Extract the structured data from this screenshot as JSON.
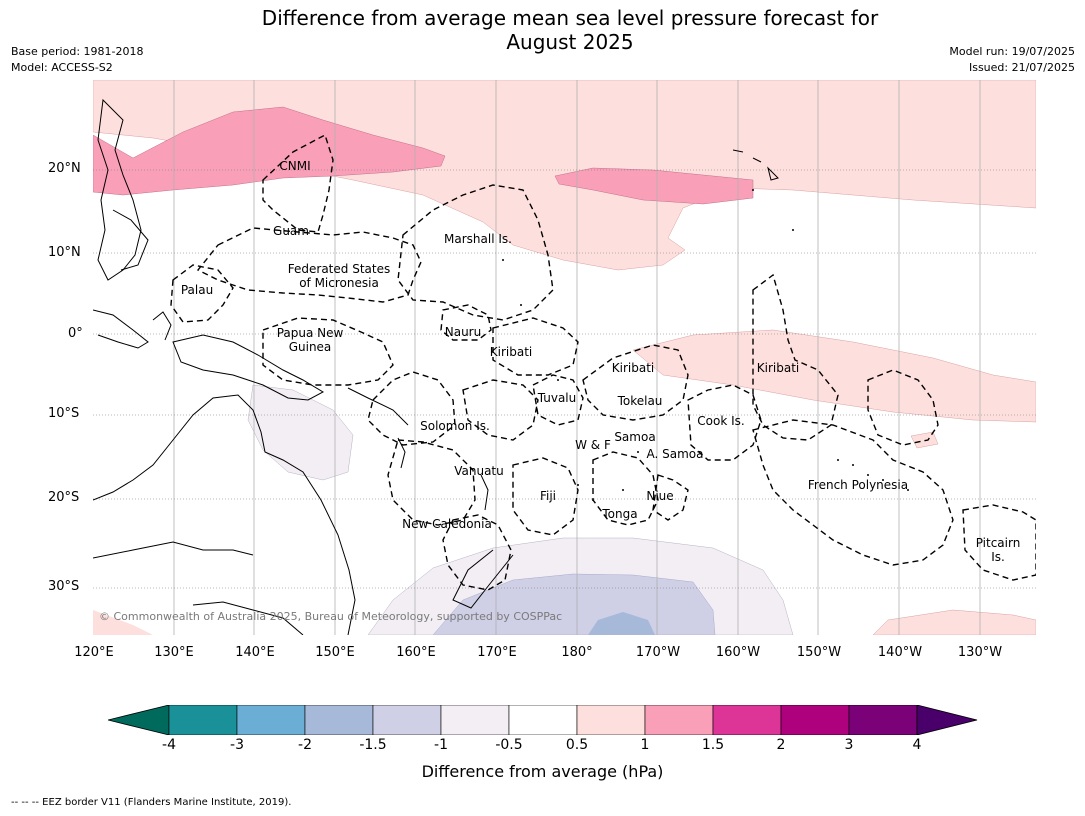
{
  "title_line1": "Difference from average mean sea level pressure forecast for",
  "title_line2": "August 2025",
  "meta": {
    "base_period": "Base period: 1981-2018",
    "model": "Model: ACCESS-S2",
    "model_run": "Model run: 19/07/2025",
    "issued": "Issued: 21/07/2025"
  },
  "lat_labels": [
    "20°N",
    "10°N",
    "0°",
    "10°S",
    "20°S",
    "30°S"
  ],
  "lon_labels": [
    "120°E",
    "130°E",
    "140°E",
    "150°E",
    "160°E",
    "170°E",
    "180°",
    "170°W",
    "160°W",
    "150°W",
    "140°W",
    "130°W"
  ],
  "region_labels": {
    "cnmi": "CNMI",
    "guam": "Guam",
    "marshall": "Marshall Is.",
    "fsm1": "Federated States",
    "fsm2": "of Micronesia",
    "palau": "Palau",
    "png1": "Papua New",
    "png2": "Guinea",
    "nauru": "Nauru",
    "kiribati_w": "Kiribati",
    "kiribati_c": "Kiribati",
    "kiribati_e": "Kiribati",
    "tuvalu": "Tuvalu",
    "tokelau": "Tokelau",
    "cook": "Cook Is.",
    "solomon": "Solomon Is.",
    "samoa": "Samoa",
    "wf": "W & F",
    "asamoa": "A. Samoa",
    "vanuatu": "Vanuatu",
    "fiji": "Fiji",
    "niue": "Niue",
    "tonga": "Tonga",
    "newcal": "New Caledonia",
    "frpoly": "French Polynesia",
    "pitcairn1": "Pitcairn",
    "pitcairn2": "Is."
  },
  "copyright": "© Commonwealth of Australia 2025, Bureau of Meteorology, supported by COSPPac",
  "colorbar": {
    "ticks": [
      "-4",
      "-3",
      "-2",
      "-1.5",
      "-1",
      "-0.5",
      "0.5",
      "1",
      "1.5",
      "2",
      "3",
      "4"
    ],
    "colors": [
      "#006a5c",
      "#1a9199",
      "#6aadd5",
      "#a7b9d9",
      "#cfcfe6",
      "#f2eef4",
      "#ffffff",
      "#fde0dd",
      "#f99fb8",
      "#dd3497",
      "#ae017e",
      "#7a0177",
      "#49006a"
    ],
    "label": "Difference from average (hPa)"
  },
  "footer": "--  --  -- EEZ border V11 (Flanders Marine Institute, 2019)."
}
